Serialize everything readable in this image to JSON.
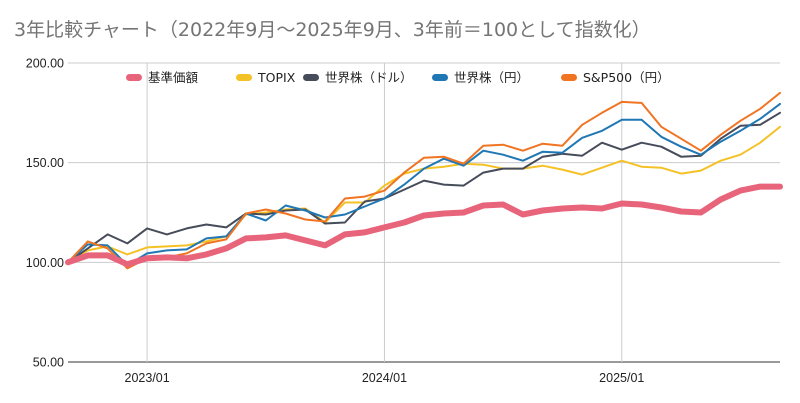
{
  "chart_data": {
    "type": "line",
    "title": "3年比較チャート（2022年9月〜2025年9月、3年前＝100として指数化）",
    "xlabel": "",
    "ylabel": "",
    "ylim": [
      50,
      200
    ],
    "yticks": [
      "50.00",
      "100.00",
      "150.00",
      "200.00"
    ],
    "xticks": [
      "2023/01",
      "2024/01",
      "2025/01"
    ],
    "xtick_index": [
      4,
      16,
      28
    ],
    "grid": true,
    "legend_position": "top",
    "x_count": 37,
    "series": [
      {
        "name": "基準価額",
        "color": "#e8647b",
        "width": 6,
        "values": [
          100,
          103.5,
          103.5,
          99,
          102,
          102.5,
          102,
          104,
          107,
          112,
          112.5,
          113.5,
          111,
          108.5,
          114,
          115,
          117.5,
          120,
          123.5,
          124.5,
          125,
          128.5,
          129,
          124,
          126,
          127,
          127.5,
          127,
          129.5,
          129,
          127.5,
          125.5,
          125,
          131.5,
          136,
          138,
          138
        ]
      },
      {
        "name": "TOPIX",
        "color": "#f4c227",
        "width": 2,
        "values": [
          100,
          106,
          108,
          104,
          107.5,
          108,
          108.5,
          110.5,
          113,
          124,
          125,
          126.5,
          127,
          120,
          130,
          130,
          138.5,
          144.5,
          147,
          148,
          149.5,
          149,
          147,
          147,
          148.5,
          146.5,
          144,
          147.5,
          151,
          148,
          147.5,
          144.5,
          146,
          151,
          154,
          160,
          168
        ]
      },
      {
        "name": "世界株（ドル）",
        "color": "#474c5b",
        "width": 2,
        "values": [
          100,
          107,
          114,
          109.5,
          117,
          114,
          117,
          119,
          117.5,
          124.5,
          124,
          126,
          126.5,
          119.5,
          120,
          130.5,
          132,
          136.5,
          141,
          139,
          138.5,
          145,
          147,
          147,
          153,
          154.5,
          153.5,
          160,
          156.5,
          160,
          158,
          153,
          153.5,
          162,
          168.5,
          169,
          175
        ]
      },
      {
        "name": "世界株（円）",
        "color": "#1f77b4",
        "width": 2,
        "values": [
          100,
          109,
          108.5,
          98.5,
          104.5,
          106,
          106.5,
          112,
          113,
          124.5,
          121,
          128.5,
          126,
          122.5,
          124,
          128,
          132,
          139,
          147,
          152,
          148.5,
          156,
          154,
          151,
          155.5,
          155,
          162.5,
          166,
          171.5,
          171.5,
          163,
          158,
          154,
          160.5,
          166,
          172,
          179.5
        ]
      },
      {
        "name": "S&P500（円）",
        "color": "#f07422",
        "width": 2,
        "values": [
          100,
          110.5,
          107,
          97,
          102,
          102.5,
          104.5,
          109.5,
          111.5,
          124.5,
          126.5,
          124.5,
          121.5,
          120.5,
          132,
          133,
          136,
          145,
          152.5,
          153,
          149.5,
          158.5,
          159,
          156,
          159.5,
          158.5,
          169,
          175,
          180.5,
          180,
          168,
          162,
          156,
          164,
          171,
          177,
          185
        ]
      }
    ]
  }
}
